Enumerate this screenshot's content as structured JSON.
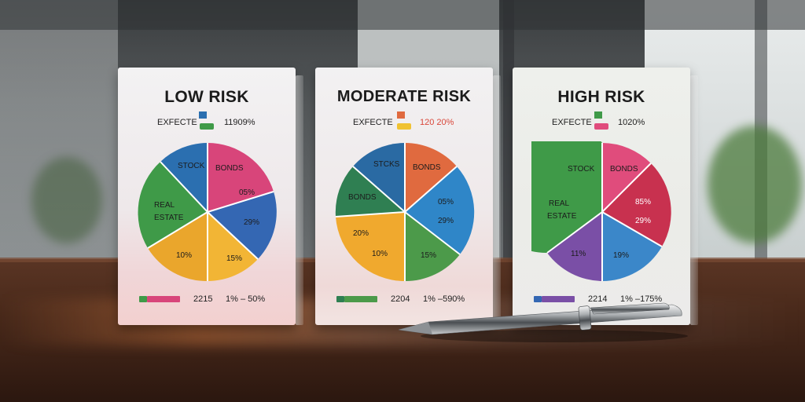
{
  "cards": [
    {
      "title": "LOW RISK",
      "expected_label": "EXFECTE",
      "expected_value": "11909%",
      "slices": [
        {
          "label": "STOCK",
          "color": "#2b6fb0"
        },
        {
          "label": "BONDS",
          "value_label": "05%",
          "color": "#d8457a"
        },
        {
          "value_label": "29%",
          "color": "#3467b3"
        },
        {
          "value_label": "15%",
          "color": "#f2b535"
        },
        {
          "value_label": "10%",
          "color": "#eaa62c"
        },
        {
          "label": "REAL",
          "label2": "ESTATE",
          "color": "#3f9a48"
        }
      ],
      "footer_value": "2215",
      "footer_range": "1% – 50%"
    },
    {
      "title": "MODERATE RISK",
      "expected_label": "EXFECTE",
      "expected_value": "120 20%",
      "slices": [
        {
          "label": "STCKS",
          "color": "#2a6aa3"
        },
        {
          "label": "BONDS",
          "color": "#e06a3f"
        },
        {
          "value_label": "05%",
          "color": "#2f86c8"
        },
        {
          "value_label": "29%",
          "color": "#2f86c8"
        },
        {
          "value_label": "15%",
          "color": "#4c9a4a"
        },
        {
          "value_label": "10%",
          "color": "#f0a92e"
        },
        {
          "value_label": "20%",
          "color": "#f0a92e"
        },
        {
          "label": "BONDS",
          "color": "#2f7f52"
        }
      ],
      "footer_value": "2204",
      "footer_range": "1% –590%"
    },
    {
      "title": "HIGH RISK",
      "expected_label": "EXFECTE",
      "expected_value": "1020%",
      "slices": [
        {
          "label": "STOCK",
          "color": "#3f9a48"
        },
        {
          "label": "BONDS",
          "color": "#e04c7c"
        },
        {
          "value_label": "85%",
          "color": "#c8314f"
        },
        {
          "value_label": "29%",
          "color": "#c8314f"
        },
        {
          "value_label": "19%",
          "color": "#3b87c9"
        },
        {
          "value_label": "11%",
          "color": "#7a4fa6"
        },
        {
          "label": "REAL",
          "label2": "ESTATE",
          "color": "#3f9a48"
        }
      ],
      "footer_value": "2214",
      "footer_range": "1% –175%"
    }
  ]
}
